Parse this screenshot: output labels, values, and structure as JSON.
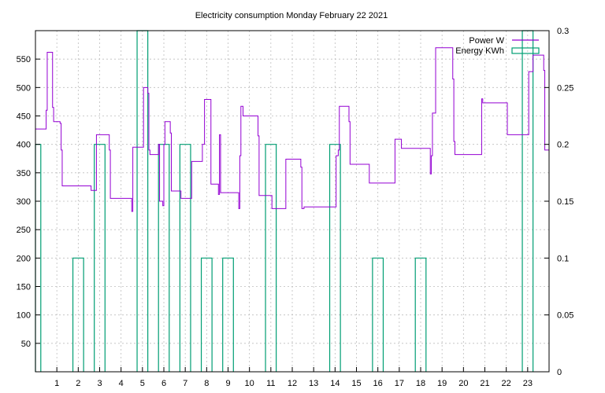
{
  "chart_data": {
    "type": "line",
    "title": "Electricity consumption Monday February 22 2021",
    "xlabel": "",
    "ylabel": "",
    "y2label": "",
    "xlim": [
      0,
      24
    ],
    "ylim": [
      0,
      600
    ],
    "y2lim": [
      0,
      0.3
    ],
    "x_ticks": [
      1,
      2,
      3,
      4,
      5,
      6,
      7,
      8,
      9,
      10,
      11,
      12,
      13,
      14,
      15,
      16,
      17,
      18,
      19,
      20,
      21,
      22,
      23
    ],
    "y_ticks": [
      50,
      100,
      150,
      200,
      250,
      300,
      350,
      400,
      450,
      500,
      550
    ],
    "y2_ticks": [
      0,
      0.05,
      0.1,
      0.15,
      0.2,
      0.25,
      0.3
    ],
    "grid": true,
    "legend": "top-right",
    "colors": {
      "power": "#9400d3",
      "energy": "#009e73"
    },
    "series": [
      {
        "name": "Power W",
        "axis": "y",
        "style": "step",
        "points": [
          [
            0.0,
            427
          ],
          [
            0.5,
            460
          ],
          [
            0.55,
            562
          ],
          [
            0.8,
            465
          ],
          [
            0.85,
            440
          ],
          [
            1.15,
            437
          ],
          [
            1.2,
            390
          ],
          [
            1.25,
            327
          ],
          [
            2.6,
            319
          ],
          [
            2.8,
            319
          ],
          [
            2.85,
            417
          ],
          [
            3.4,
            417
          ],
          [
            3.45,
            390
          ],
          [
            3.5,
            305
          ],
          [
            4.45,
            305
          ],
          [
            4.5,
            282
          ],
          [
            4.55,
            395
          ],
          [
            5.0,
            395
          ],
          [
            5.05,
            500
          ],
          [
            5.25,
            490
          ],
          [
            5.3,
            390
          ],
          [
            5.35,
            382
          ],
          [
            5.7,
            382
          ],
          [
            5.75,
            400
          ],
          [
            5.8,
            300
          ],
          [
            5.95,
            292
          ],
          [
            6.0,
            400
          ],
          [
            6.05,
            440
          ],
          [
            6.3,
            420
          ],
          [
            6.35,
            318
          ],
          [
            6.75,
            318
          ],
          [
            6.8,
            305
          ],
          [
            7.25,
            305
          ],
          [
            7.3,
            370
          ],
          [
            7.75,
            370
          ],
          [
            7.8,
            400
          ],
          [
            7.9,
            479
          ],
          [
            8.15,
            479
          ],
          [
            8.2,
            330
          ],
          [
            8.5,
            330
          ],
          [
            8.55,
            312
          ],
          [
            8.6,
            417
          ],
          [
            8.65,
            315
          ],
          [
            9.45,
            315
          ],
          [
            9.5,
            287
          ],
          [
            9.55,
            380
          ],
          [
            9.6,
            467
          ],
          [
            9.7,
            450
          ],
          [
            10.35,
            450
          ],
          [
            10.4,
            415
          ],
          [
            10.45,
            310
          ],
          [
            11.0,
            310
          ],
          [
            11.05,
            287
          ],
          [
            11.65,
            287
          ],
          [
            11.7,
            374
          ],
          [
            12.35,
            374
          ],
          [
            12.4,
            360
          ],
          [
            12.45,
            287
          ],
          [
            12.55,
            290
          ],
          [
            14.0,
            290
          ],
          [
            14.05,
            380
          ],
          [
            14.15,
            390
          ],
          [
            14.2,
            467
          ],
          [
            14.6,
            467
          ],
          [
            14.65,
            440
          ],
          [
            14.7,
            365
          ],
          [
            15.55,
            365
          ],
          [
            15.6,
            332
          ],
          [
            16.75,
            332
          ],
          [
            16.8,
            409
          ],
          [
            17.05,
            409
          ],
          [
            17.1,
            393
          ],
          [
            18.4,
            393
          ],
          [
            18.45,
            348
          ],
          [
            18.5,
            380
          ],
          [
            18.55,
            455
          ],
          [
            18.65,
            455
          ],
          [
            18.7,
            570
          ],
          [
            19.45,
            570
          ],
          [
            19.5,
            515
          ],
          [
            19.55,
            405
          ],
          [
            19.6,
            382
          ],
          [
            20.8,
            382
          ],
          [
            20.85,
            480
          ],
          [
            20.9,
            473
          ],
          [
            22.0,
            473
          ],
          [
            22.05,
            417
          ],
          [
            23.0,
            417
          ],
          [
            23.05,
            528
          ],
          [
            23.2,
            528
          ],
          [
            23.25,
            557
          ],
          [
            23.7,
            557
          ],
          [
            23.75,
            530
          ],
          [
            23.8,
            390
          ],
          [
            24.0,
            390
          ]
        ]
      },
      {
        "name": "Energy KWh",
        "axis": "y2",
        "style": "histeps",
        "x": [
          0,
          1,
          2,
          3,
          4,
          5,
          6,
          7,
          8,
          9,
          10,
          11,
          12,
          13,
          14,
          15,
          16,
          17,
          18,
          19,
          20,
          21,
          22,
          23
        ],
        "values": [
          0.2,
          0.0,
          0.1,
          0.2,
          0.0,
          0.3,
          0.2,
          0.2,
          0.1,
          0.1,
          0.0,
          0.2,
          0.0,
          0.0,
          0.2,
          0.0,
          0.1,
          0.0,
          0.1,
          0.0,
          0.0,
          0.0,
          0.0,
          0.3
        ]
      }
    ]
  }
}
